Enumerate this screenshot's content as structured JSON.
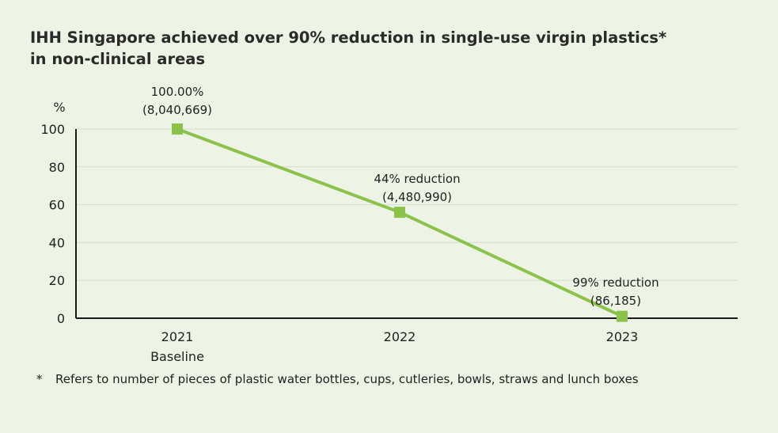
{
  "title_line1": "IHH Singapore achieved over 90% reduction in single-use virgin plastics*",
  "title_line2": "in non-clinical areas",
  "chart_data": {
    "type": "line",
    "ylabel": "%",
    "ylim": [
      0,
      100
    ],
    "yticks": [
      0,
      20,
      40,
      60,
      80,
      100
    ],
    "grid": true,
    "categories": [
      {
        "line1": "2021",
        "line2": "Baseline"
      },
      {
        "line1": "2022",
        "line2": ""
      },
      {
        "line1": "2023",
        "line2": ""
      }
    ],
    "values": [
      100,
      56,
      1
    ],
    "annotations": [
      {
        "line1": "100.00%",
        "line2": "(8,040,669)"
      },
      {
        "line1": "44% reduction",
        "line2": "(4,480,990)"
      },
      {
        "line1": "99% reduction",
        "line2": "(86,185)"
      }
    ],
    "color": "#8bc34a"
  },
  "footnote": {
    "mark": "*",
    "text": "Refers to number of pieces of plastic water bottles, cups, cutleries, bowls, straws and lunch boxes"
  }
}
